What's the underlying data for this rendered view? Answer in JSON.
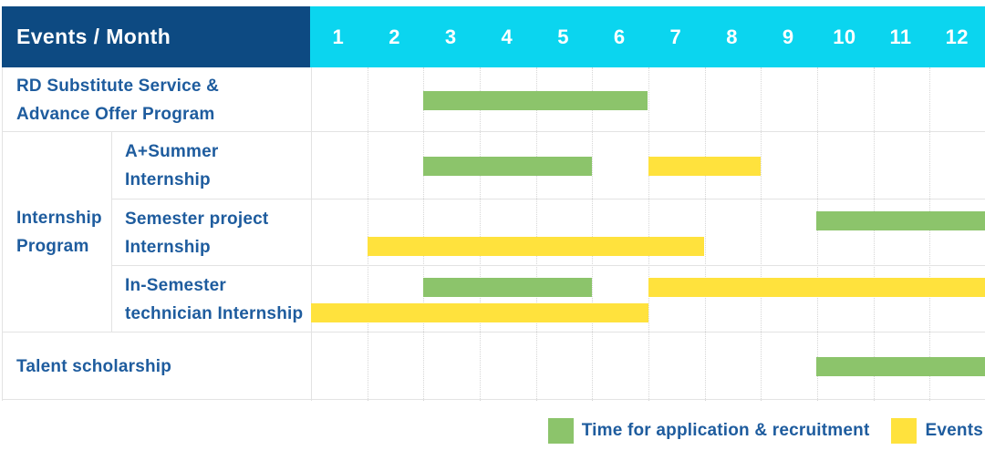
{
  "header": {
    "corner_label": "Events / Month",
    "months": [
      "1",
      "2",
      "3",
      "4",
      "5",
      "6",
      "7",
      "8",
      "9",
      "10",
      "11",
      "12"
    ]
  },
  "legend": [
    {
      "series": "application",
      "color": "#8CC46B",
      "label": "Time for application & recruitment"
    },
    {
      "series": "events",
      "color": "#FFE23D",
      "label": "Events"
    }
  ],
  "colors": {
    "header_bg": "#0D4A82",
    "months_bg": "#0BD5EF",
    "application_green": "#8CC46B",
    "events_yellow": "#FFE23D",
    "label_text": "#1E5C9E",
    "header_text": "#FFFFFF",
    "grid_solid": "#E3E3E3",
    "grid_dotted": "#D6D6D6"
  },
  "chart_data": {
    "type": "table",
    "subtype": "gantt-schedule",
    "title": "Events / Month",
    "x_axis": {
      "label": "Month",
      "ticks": [
        1,
        2,
        3,
        4,
        5,
        6,
        7,
        8,
        9,
        10,
        11,
        12
      ],
      "range": [
        1,
        12
      ]
    },
    "legend_entries": [
      {
        "series": "application",
        "label": "Time for application & recruitment",
        "color": "#8CC46B"
      },
      {
        "series": "events",
        "label": "Events",
        "color": "#FFE23D"
      }
    ],
    "groups": [
      {
        "label": "Internship Program",
        "label_lines": [
          "Internship",
          "Program"
        ],
        "row_indexes": [
          1,
          2,
          3
        ]
      }
    ],
    "rows": [
      {
        "label": "RD Substitute Service & Advance Offer Program",
        "label_lines": [
          "RD Substitute Service &",
          "Advance Offer Program"
        ],
        "group": null,
        "bars": [
          {
            "series": "application",
            "start_month": 3,
            "end_month": 6,
            "lane": "center"
          }
        ]
      },
      {
        "label": "A+Summer Internship",
        "label_lines": [
          "A+Summer",
          "Internship"
        ],
        "group": "Internship Program",
        "bars": [
          {
            "series": "application",
            "start_month": 3,
            "end_month": 5,
            "lane": "center"
          },
          {
            "series": "events",
            "start_month": 7,
            "end_month": 8,
            "lane": "center"
          }
        ]
      },
      {
        "label": "Semester project Internship",
        "label_lines": [
          "Semester project",
          "Internship"
        ],
        "group": "Internship Program",
        "bars": [
          {
            "series": "application",
            "start_month": 10,
            "end_month": 12,
            "lane": "top"
          },
          {
            "series": "events",
            "start_month": 2,
            "end_month": 7,
            "lane": "bottom"
          }
        ]
      },
      {
        "label": "In-Semester technician Internship",
        "label_lines": [
          "In-Semester",
          "technician Internship"
        ],
        "group": "Internship Program",
        "bars": [
          {
            "series": "application",
            "start_month": 3,
            "end_month": 5,
            "lane": "top"
          },
          {
            "series": "events",
            "start_month": 7,
            "end_month": 12,
            "lane": "top"
          },
          {
            "series": "events",
            "start_month": 1,
            "end_month": 6,
            "lane": "bottom"
          }
        ]
      },
      {
        "label": "Talent scholarship",
        "label_lines": [
          "Talent scholarship"
        ],
        "group": null,
        "bars": [
          {
            "series": "application",
            "start_month": 10,
            "end_month": 12,
            "lane": "center"
          }
        ]
      }
    ]
  }
}
